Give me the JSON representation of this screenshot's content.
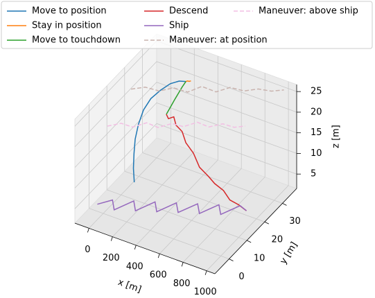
{
  "chart_data": {
    "type": "line3d",
    "xlabel": "x [m]",
    "ylabel": "y [m]",
    "zlabel": "z [m]",
    "xlim": [
      -120,
      1070
    ],
    "ylim": [
      -8,
      38
    ],
    "zlim": [
      1.5,
      26.7
    ],
    "xticks": [
      0,
      200,
      400,
      600,
      800,
      1000
    ],
    "yticks": [
      0,
      10,
      20,
      30
    ],
    "zticks": [
      5,
      10,
      15,
      20,
      25
    ],
    "grid": true,
    "legend": "upper center",
    "series": [
      {
        "name": "Move to position",
        "color": "#1f77b4",
        "linestyle": "solid",
        "x": [
          45,
          30,
          20,
          15,
          20,
          40,
          80,
          140,
          200,
          260,
          310
        ],
        "y": [
          14.5,
          15,
          16,
          17,
          18.5,
          20,
          21.5,
          23,
          24.5,
          25.5,
          26
        ],
        "z": [
          3,
          6,
          9,
          12,
          15,
          18,
          20.5,
          22.5,
          24,
          24.8,
          25
        ]
      },
      {
        "name": "Stay in position",
        "color": "#ff7f0e",
        "linestyle": "solid",
        "x": [
          310,
          320,
          330,
          340
        ],
        "y": [
          26,
          26.3,
          26.5,
          26.8
        ],
        "z": [
          25,
          25.1,
          25,
          25.1
        ]
      },
      {
        "name": "Move to touchdown",
        "color": "#2ca02c",
        "linestyle": "solid",
        "x": [
          310,
          300,
          290,
          280,
          270,
          260
        ],
        "y": [
          26,
          24.5,
          23,
          21.5,
          20,
          18.3
        ],
        "z": [
          25,
          24.2,
          23.2,
          22.2,
          21.1,
          20
        ]
      },
      {
        "name": "Descend",
        "color": "#d62728",
        "linestyle": "solid",
        "x": [
          260,
          290,
          320,
          350,
          390,
          430,
          480,
          540,
          600,
          660,
          720,
          780,
          840,
          900
        ],
        "y": [
          18.3,
          17.5,
          18.5,
          17.8,
          18.6,
          18,
          19,
          18.4,
          19.4,
          19,
          20,
          19.6,
          20.6,
          21
        ],
        "z": [
          20,
          19.6,
          19.9,
          18.5,
          17,
          15,
          12.5,
          10,
          8,
          7,
          5.5,
          4,
          3,
          2
        ]
      },
      {
        "name": "Ship",
        "color": "#9467bd",
        "linestyle": "solid",
        "x": [
          -80,
          -10,
          60,
          130,
          200,
          270,
          340,
          410,
          480,
          550,
          620,
          690,
          760,
          830,
          900
        ],
        "y": [
          2,
          5.9,
          2.2,
          8.6,
          4.9,
          11.3,
          7.6,
          14,
          10.4,
          16.7,
          13.1,
          19.4,
          15.8,
          22.1,
          21
        ],
        "z": [
          2,
          2,
          2,
          2,
          2,
          2,
          2,
          2,
          2,
          2,
          2,
          2,
          2,
          2,
          2
        ]
      },
      {
        "name": "Maneuver: at position",
        "color": "#c9b3ae",
        "linestyle": "dashed",
        "x": [
          10,
          100,
          190,
          280,
          370,
          460,
          550,
          640,
          730,
          820,
          900,
          980
        ],
        "y": [
          15,
          17,
          19,
          21,
          23,
          25,
          27,
          29,
          31,
          33,
          35,
          36.8
        ],
        "z": [
          25,
          25.5,
          24.6,
          25.4,
          24.4,
          25.8,
          24.5,
          25.6,
          24.8,
          25.3,
          24.7,
          25
        ]
      },
      {
        "name": "Maneuver: above ship",
        "color": "#f2bfe3",
        "linestyle": "dashed",
        "x": [
          -40,
          40,
          120,
          200,
          280,
          360,
          440,
          520,
          600,
          680,
          760,
          830
        ],
        "y": [
          5,
          7.5,
          8.6,
          11.2,
          12.3,
          14.9,
          16,
          18.6,
          19.7,
          22.3,
          23.4,
          25
        ],
        "z": [
          20,
          20.4,
          19.8,
          20.5,
          19.7,
          20.3,
          19.9,
          20.6,
          19.8,
          20.2,
          19.7,
          20
        ]
      }
    ]
  }
}
